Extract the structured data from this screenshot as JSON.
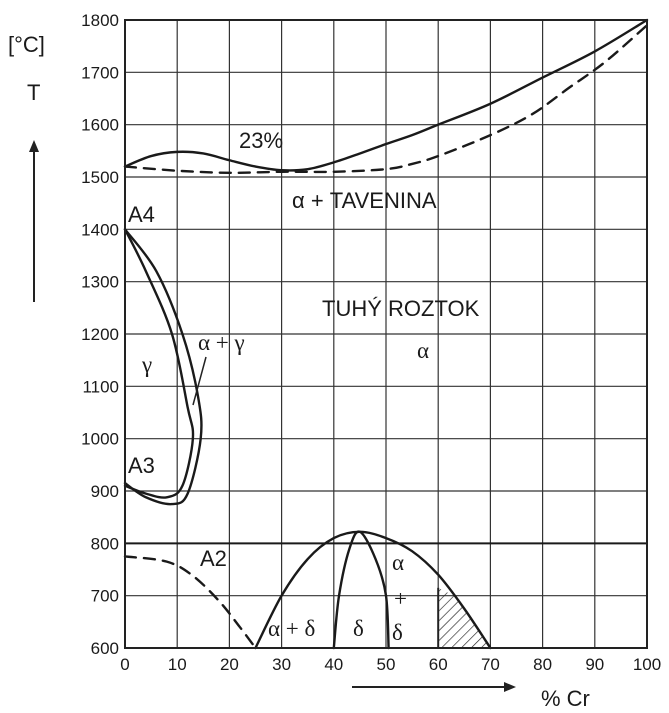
{
  "figure": {
    "y_unit": "[°C]",
    "y_label": "T",
    "x_label": "% Cr",
    "y_ticks": [
      600,
      700,
      800,
      900,
      1000,
      1100,
      1200,
      1300,
      1400,
      1500,
      1600,
      1700,
      1800
    ],
    "x_ticks": [
      0,
      10,
      20,
      30,
      40,
      50,
      60,
      70,
      80,
      90,
      100
    ],
    "labels": {
      "pct23": "23%",
      "liquid": "α + TAVENINA",
      "solid": "TUHÝ ROZTOK",
      "alpha": "α",
      "A4": "A4",
      "A3": "A3",
      "A2": "A2",
      "gamma": "γ",
      "alpha_gamma": "α + γ",
      "alpha_delta": "α + δ",
      "delta": "δ",
      "alpha_r": "α",
      "plus": "+",
      "delta_r": "δ"
    }
  },
  "chart_data": {
    "type": "phase-diagram",
    "xlabel": "% Cr",
    "ylabel": "T",
    "y_unit": "[°C]",
    "xlim": [
      0,
      100
    ],
    "ylim": [
      600,
      1800
    ],
    "grid": true,
    "curves": [
      {
        "name": "liquidus",
        "style": "solid",
        "points": [
          [
            0,
            1520
          ],
          [
            5,
            1540
          ],
          [
            10,
            1548
          ],
          [
            15,
            1545
          ],
          [
            20,
            1532
          ],
          [
            25,
            1520
          ],
          [
            30,
            1513
          ],
          [
            35,
            1515
          ],
          [
            40,
            1528
          ],
          [
            45,
            1545
          ],
          [
            50,
            1563
          ],
          [
            55,
            1580
          ],
          [
            60,
            1600
          ],
          [
            70,
            1640
          ],
          [
            80,
            1690
          ],
          [
            90,
            1740
          ],
          [
            100,
            1800
          ]
        ]
      },
      {
        "name": "solidus",
        "style": "dashed",
        "points": [
          [
            0,
            1520
          ],
          [
            10,
            1512
          ],
          [
            20,
            1508
          ],
          [
            30,
            1510
          ],
          [
            40,
            1510
          ],
          [
            50,
            1515
          ],
          [
            55,
            1525
          ],
          [
            60,
            1540
          ],
          [
            70,
            1580
          ],
          [
            78,
            1620
          ],
          [
            85,
            1670
          ],
          [
            92,
            1720
          ],
          [
            100,
            1790
          ]
        ]
      },
      {
        "name": "gamma-loop-inner",
        "style": "solid",
        "points": [
          [
            0,
            1400
          ],
          [
            4,
            1320
          ],
          [
            9,
            1200
          ],
          [
            12,
            1060
          ],
          [
            13,
            1000
          ],
          [
            11,
            910
          ],
          [
            8,
            888
          ],
          [
            4,
            895
          ],
          [
            0,
            910
          ]
        ]
      },
      {
        "name": "gamma-loop-outer",
        "style": "solid",
        "points": [
          [
            0,
            1400
          ],
          [
            6,
            1320
          ],
          [
            11,
            1200
          ],
          [
            14,
            1080
          ],
          [
            14.5,
            1000
          ],
          [
            12,
            895
          ],
          [
            9,
            875
          ],
          [
            4,
            888
          ],
          [
            0,
            915
          ]
        ]
      },
      {
        "name": "A2",
        "style": "dashed",
        "points": [
          [
            0,
            775
          ],
          [
            8,
            765
          ],
          [
            13,
            738
          ],
          [
            18,
            690
          ],
          [
            22,
            640
          ],
          [
            25,
            600
          ]
        ]
      },
      {
        "name": "sigma-outer",
        "style": "solid",
        "points": [
          [
            25,
            600
          ],
          [
            30,
            700
          ],
          [
            35,
            770
          ],
          [
            40,
            810
          ],
          [
            45,
            822
          ],
          [
            50,
            810
          ],
          [
            55,
            785
          ],
          [
            60,
            740
          ],
          [
            65,
            675
          ],
          [
            70,
            600
          ]
        ]
      },
      {
        "name": "sigma-inner",
        "style": "solid",
        "points": [
          [
            40,
            600
          ],
          [
            41,
            700
          ],
          [
            43,
            790
          ],
          [
            45,
            822
          ],
          [
            48,
            770
          ],
          [
            50,
            700
          ],
          [
            50.5,
            600
          ]
        ]
      },
      {
        "name": "line-800",
        "style": "solid",
        "points": [
          [
            0,
            800
          ],
          [
            100,
            800
          ]
        ]
      }
    ],
    "hatched_region": [
      [
        60,
        600
      ],
      [
        60,
        715
      ],
      [
        63,
        700
      ],
      [
        66,
        665
      ],
      [
        70,
        600
      ]
    ],
    "annotations": [
      "23%",
      "α + TAVENINA",
      "TUHÝ ROZTOK",
      "α",
      "A4",
      "A3",
      "A2",
      "γ",
      "α + γ",
      "α + δ",
      "δ",
      "α",
      "+",
      "δ"
    ]
  }
}
